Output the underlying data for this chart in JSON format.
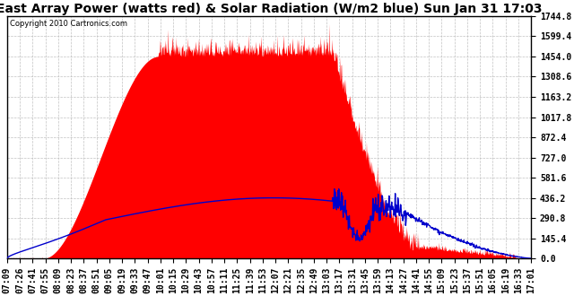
{
  "title": "East Array Power (watts red) & Solar Radiation (W/m2 blue) Sun Jan 31 17:03",
  "copyright": "Copyright 2010 Cartronics.com",
  "ymin": 0.0,
  "ymax": 1744.8,
  "yticks": [
    0.0,
    145.4,
    290.8,
    436.2,
    581.6,
    727.0,
    872.4,
    1017.8,
    1163.2,
    1308.6,
    1454.0,
    1599.4,
    1744.8
  ],
  "xtick_labels": [
    "07:09",
    "07:26",
    "07:41",
    "07:55",
    "08:09",
    "08:23",
    "08:37",
    "08:51",
    "09:05",
    "09:19",
    "09:33",
    "09:47",
    "10:01",
    "10:15",
    "10:29",
    "10:43",
    "10:57",
    "11:11",
    "11:25",
    "11:39",
    "11:53",
    "12:07",
    "12:21",
    "12:35",
    "12:49",
    "13:03",
    "13:17",
    "13:31",
    "13:45",
    "13:59",
    "14:13",
    "14:27",
    "14:41",
    "14:55",
    "15:09",
    "15:23",
    "15:37",
    "15:51",
    "16:05",
    "16:19",
    "16:33",
    "17:01"
  ],
  "background_color": "#ffffff",
  "plot_bg_color": "#ffffff",
  "grid_color": "#bbbbbb",
  "red_color": "#ff0000",
  "blue_color": "#0000cc",
  "title_fontsize": 10,
  "tick_fontsize": 7
}
